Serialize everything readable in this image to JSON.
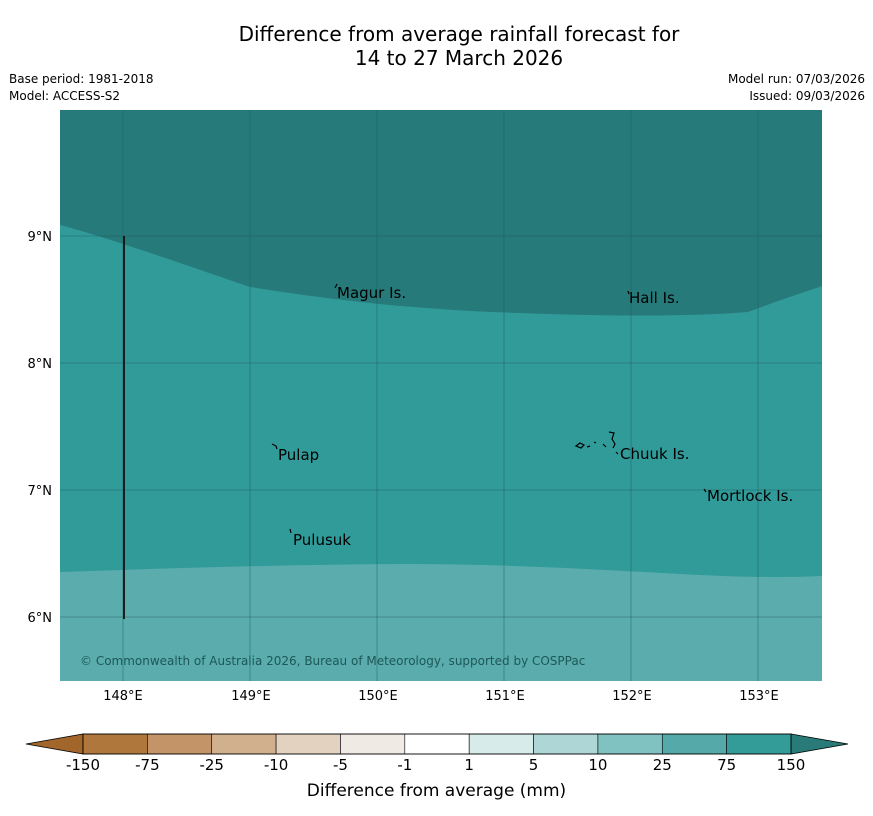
{
  "title": {
    "line1": "Difference from average rainfall forecast for",
    "line2": "14 to 27 March 2026"
  },
  "meta": {
    "base_period": "Base period: 1981-2018",
    "model": "Model: ACCESS-S2",
    "model_run": "Model run: 07/03/2026",
    "issued": "Issued: 09/03/2026"
  },
  "map": {
    "lon_labels": [
      "148°E",
      "149°E",
      "150°E",
      "151°E",
      "152°E",
      "153°E"
    ],
    "lat_labels": [
      "9°N",
      "8°N",
      "7°N",
      "6°N"
    ],
    "places": [
      {
        "name": "Magur Is."
      },
      {
        "name": "Hall Is."
      },
      {
        "name": "Pulap"
      },
      {
        "name": "Chuuk Is."
      },
      {
        "name": "Mortlock Is."
      },
      {
        "name": "Pulusuk"
      }
    ],
    "copyright": "© Commonwealth of Australia 2026, Bureau of Meteorology, supported by COSPPac",
    "colors": {
      "above_150": "#277a7a",
      "75_to_150": "#319b99",
      "25_to_75": "#5aacad",
      "grid": "#1f5a5a"
    }
  },
  "colorbar": {
    "ticks": [
      "-150",
      "-75",
      "-25",
      "-10",
      "-5",
      "-1",
      "1",
      "5",
      "10",
      "25",
      "75",
      "150"
    ],
    "colors": [
      "#b0773c",
      "#c29467",
      "#d1b08e",
      "#e4d2c1",
      "#efebe4",
      "#ffffff",
      "#d6ebea",
      "#afd6d6",
      "#80c2c1",
      "#55aaa9",
      "#339c99"
    ],
    "under_color": "#a3662a",
    "over_color": "#287b78",
    "label": "Difference from average (mm)"
  }
}
